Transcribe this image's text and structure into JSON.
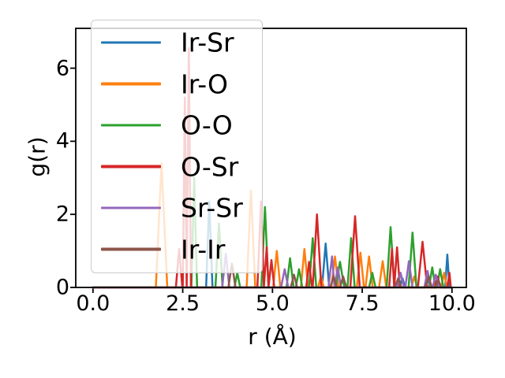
{
  "figure": {
    "background": "#ffffff",
    "xlabel": "r (Å)",
    "ylabel": "g(r)",
    "x_tick_labels": [
      "0.0",
      "2.5",
      "5.0",
      "7.5",
      "10.0"
    ],
    "x_tick_values": [
      0,
      2.5,
      5,
      7.5,
      10
    ],
    "y_tick_labels": [
      "0",
      "2",
      "4",
      "6"
    ],
    "y_tick_values": [
      0,
      2,
      4,
      6
    ]
  },
  "legend": {
    "entries": [
      {
        "label": "Ir-Sr",
        "color": "#1f77b4"
      },
      {
        "label": "Ir-O",
        "color": "#ff7f0e"
      },
      {
        "label": "O-O",
        "color": "#2ca02c"
      },
      {
        "label": "O-Sr",
        "color": "#d62728"
      },
      {
        "label": "Sr-Sr",
        "color": "#9467bd"
      },
      {
        "label": "Ir-Ir",
        "color": "#8c564b"
      }
    ]
  },
  "chart_data": {
    "type": "line",
    "title": "",
    "xlabel": "r (Å)",
    "ylabel": "g(r)",
    "xlim": [
      -0.48,
      10.4
    ],
    "ylim": [
      0,
      7.09
    ],
    "grid": false,
    "legend_position": "upper left",
    "baseline": 0,
    "r_start": 0.0,
    "r_end": 9.97,
    "series_representation": "peaks listed as [r_angstrom, g_height, half_width_angstrom]; g(r) is 0 between peaks",
    "series": [
      {
        "name": "Ir-Sr",
        "color": "#1f77b4",
        "peaks": [
          [
            3.24,
            2.35,
            0.09
          ],
          [
            6.48,
            1.2,
            0.1
          ],
          [
            8.62,
            0.25,
            0.08
          ],
          [
            9.33,
            0.2,
            0.08
          ],
          [
            9.87,
            0.9,
            0.06
          ]
        ]
      },
      {
        "name": "Ir-O",
        "color": "#ff7f0e",
        "peaks": [
          [
            1.91,
            3.4,
            0.16
          ],
          [
            4.4,
            2.65,
            0.12
          ],
          [
            5.12,
            1.0,
            0.1
          ],
          [
            5.89,
            1.05,
            0.1
          ],
          [
            6.35,
            0.3,
            0.08
          ],
          [
            6.74,
            0.85,
            0.1
          ],
          [
            7.45,
            0.95,
            0.1
          ],
          [
            7.69,
            0.85,
            0.1
          ],
          [
            8.07,
            0.72,
            0.1
          ],
          [
            8.95,
            0.3,
            0.08
          ],
          [
            9.78,
            0.4,
            0.08
          ]
        ]
      },
      {
        "name": "O-O",
        "color": "#2ca02c",
        "peaks": [
          [
            2.82,
            3.0,
            0.08
          ],
          [
            3.51,
            1.75,
            0.1
          ],
          [
            4.02,
            0.4,
            0.08
          ],
          [
            4.79,
            2.2,
            0.1
          ],
          [
            5.49,
            0.8,
            0.1
          ],
          [
            5.74,
            0.5,
            0.09
          ],
          [
            6.12,
            1.35,
            0.1
          ],
          [
            6.88,
            0.7,
            0.12
          ],
          [
            7.19,
            1.35,
            0.1
          ],
          [
            7.78,
            0.4,
            0.09
          ],
          [
            8.29,
            1.65,
            0.11
          ],
          [
            8.9,
            1.5,
            0.11
          ],
          [
            9.45,
            0.55,
            0.09
          ],
          [
            9.67,
            0.5,
            0.09
          ]
        ]
      },
      {
        "name": "O-Sr",
        "color": "#d62728",
        "peaks": [
          [
            2.4,
            1.05,
            0.09
          ],
          [
            2.56,
            5.2,
            0.06
          ],
          [
            2.67,
            6.55,
            0.06
          ],
          [
            4.68,
            2.35,
            0.1
          ],
          [
            4.84,
            1.1,
            0.08
          ],
          [
            4.97,
            0.75,
            0.08
          ],
          [
            6.02,
            0.7,
            0.08
          ],
          [
            6.24,
            2.0,
            0.12
          ],
          [
            7.3,
            1.95,
            0.13
          ],
          [
            8.33,
            1.05,
            0.08
          ],
          [
            8.47,
            1.1,
            0.08
          ],
          [
            9.18,
            1.25,
            0.13
          ],
          [
            9.6,
            0.3,
            0.08
          ],
          [
            9.93,
            0.4,
            0.06
          ]
        ]
      },
      {
        "name": "Sr-Sr",
        "color": "#9467bd",
        "peaks": [
          [
            3.7,
            0.92,
            0.1
          ],
          [
            5.34,
            0.5,
            0.1
          ],
          [
            6.66,
            0.85,
            0.1
          ],
          [
            6.82,
            0.55,
            0.09
          ],
          [
            8.57,
            0.4,
            0.09
          ],
          [
            8.8,
            0.72,
            0.1
          ],
          [
            9.32,
            0.45,
            0.09
          ],
          [
            9.55,
            0.35,
            0.09
          ]
        ]
      },
      {
        "name": "Ir-Ir",
        "color": "#8c564b",
        "peaks": [
          [
            3.87,
            0.65,
            0.1
          ],
          [
            5.6,
            0.35,
            0.09
          ],
          [
            6.7,
            0.3,
            0.09
          ],
          [
            6.97,
            0.3,
            0.09
          ],
          [
            8.5,
            0.25,
            0.09
          ],
          [
            9.35,
            0.3,
            0.09
          ],
          [
            9.62,
            0.2,
            0.08
          ]
        ]
      }
    ]
  }
}
